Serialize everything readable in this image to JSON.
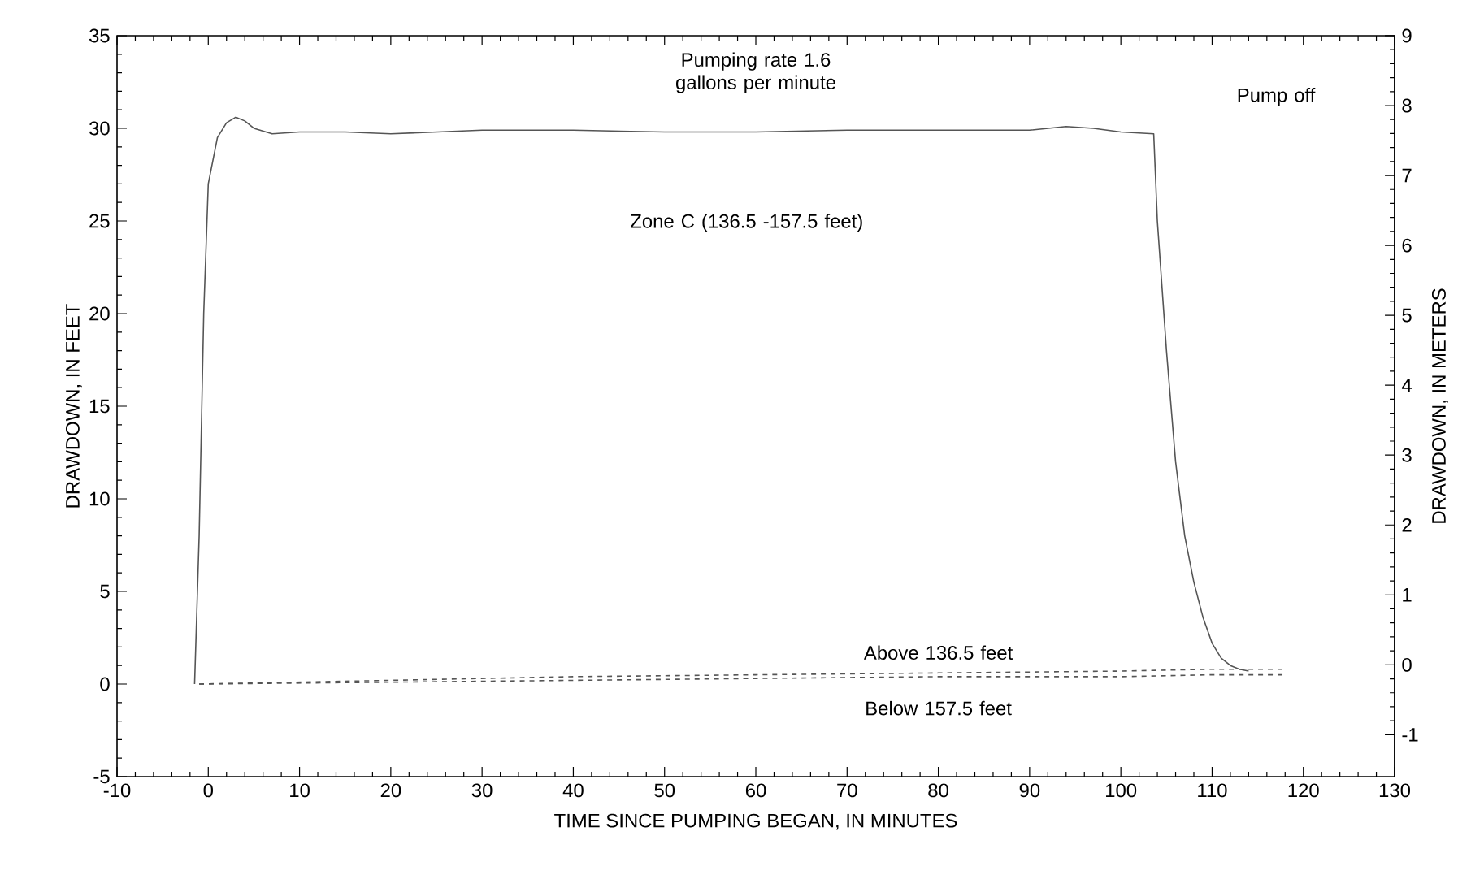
{
  "chart_data": {
    "type": "line",
    "xlabel": "TIME SINCE PUMPING BEGAN, IN MINUTES",
    "ylabel": "DRAWDOWN, IN FEET",
    "y2label": "DRAWDOWN, IN METERS",
    "xlim": [
      -10,
      130
    ],
    "xticks": [
      -10,
      0,
      10,
      20,
      30,
      40,
      50,
      60,
      70,
      80,
      90,
      100,
      110,
      120,
      130
    ],
    "ylim": [
      -5,
      35
    ],
    "yticks": [
      -5,
      0,
      5,
      10,
      15,
      20,
      25,
      30,
      35
    ],
    "y2lim": [
      -1.6,
      9
    ],
    "y2ticks": [
      -1,
      0,
      1,
      2,
      3,
      4,
      5,
      6,
      7,
      8,
      9
    ],
    "grid": false,
    "series": [
      {
        "color": "#555555",
        "line_style": "solid",
        "x": [
          -1.5,
          -1,
          -0.5,
          0,
          1,
          2,
          3,
          4,
          5,
          7,
          10,
          15,
          20,
          30,
          40,
          50,
          60,
          70,
          80,
          90,
          94,
          97,
          100,
          103.6,
          104,
          105,
          106,
          107,
          108,
          109,
          110,
          111,
          112,
          113,
          114
        ],
        "values": [
          0,
          8,
          20,
          27,
          29.5,
          30.3,
          30.6,
          30.4,
          30,
          29.7,
          29.8,
          29.8,
          29.7,
          29.9,
          29.9,
          29.8,
          29.8,
          29.9,
          29.9,
          29.9,
          30.1,
          30,
          29.8,
          29.7,
          25,
          18,
          12,
          8,
          5.5,
          3.6,
          2.2,
          1.4,
          1,
          0.8,
          0.7
        ]
      },
      {
        "color": "#555555",
        "line_style": "dashed",
        "x": [
          -1,
          20,
          40,
          60,
          80,
          100,
          110,
          118
        ],
        "values": [
          0,
          0.2,
          0.4,
          0.5,
          0.6,
          0.7,
          0.8,
          0.8
        ]
      },
      {
        "color": "#555555",
        "line_style": "dashed",
        "x": [
          -1,
          20,
          40,
          60,
          80,
          100,
          110,
          118
        ],
        "values": [
          0,
          0.1,
          0.2,
          0.3,
          0.4,
          0.4,
          0.5,
          0.5
        ]
      }
    ],
    "annotations": [
      "Pumping rate 1.6 gallons per minute",
      "Pump off",
      "Zone C (136.5 -157.5 feet)",
      "Above 136.5 feet",
      "Below 157.5 feet"
    ]
  }
}
